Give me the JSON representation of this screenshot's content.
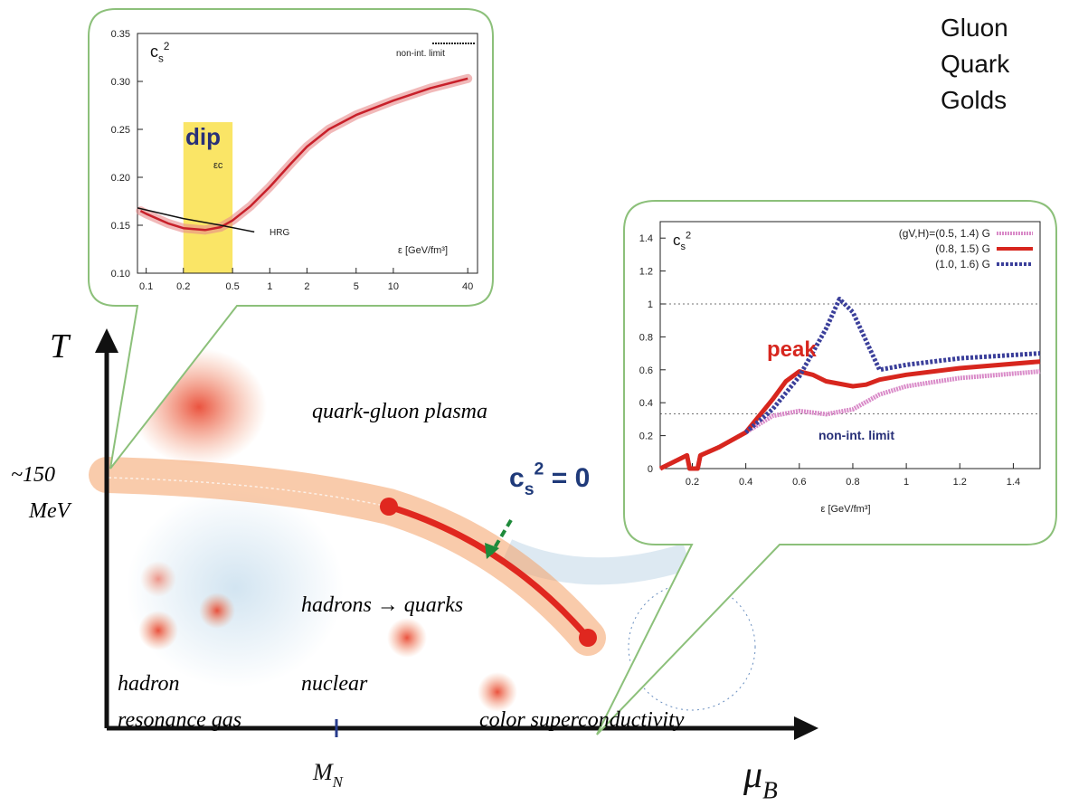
{
  "side_text": [
    "Gluon",
    "Quark",
    "Golds"
  ],
  "phase_diagram": {
    "y_axis_label": "T",
    "x_axis_label": {
      "main": "μ",
      "sub": "B"
    },
    "temperature_mark": [
      "~150",
      "MeV"
    ],
    "density_mark": {
      "main": "M",
      "sub": "N"
    },
    "regions": [
      "quark-gluon plasma",
      "hadrons → quarks",
      "hadron",
      "resonance gas",
      "nuclear",
      "color superconductivity"
    ],
    "critical_label": {
      "main": "c",
      "sub": "s",
      "sup": "2",
      "rest": " = 0"
    }
  },
  "insets": [
    {
      "type": "line",
      "xscale": "log",
      "ylabel": {
        "main": "c",
        "sub": "s",
        "sup": "2"
      },
      "xlabel": "ε [GeV/fm³]",
      "annotations": [
        "dip",
        "εc",
        "HRG"
      ],
      "legend_text": "non-int. limit",
      "highlight": [
        0.2,
        0.5
      ],
      "xlim": [
        0.085,
        48
      ],
      "ylim": [
        0.1,
        0.35
      ],
      "xticks": [
        0.1,
        0.2,
        0.5,
        1,
        2,
        5,
        10,
        40
      ],
      "yticks": [
        {
          "value": 0.1,
          "label": "0.10"
        },
        0.15,
        {
          "value": 0.2,
          "label": "0.20"
        },
        0.25,
        {
          "value": 0.3,
          "label": "0.30"
        },
        0.35
      ],
      "series": [
        {
          "color": "#c8202a",
          "x": [
            0.09,
            0.1,
            0.15,
            0.2,
            0.3,
            0.4,
            0.5,
            0.7,
            1,
            1.5,
            2,
            3,
            5,
            10,
            20,
            40
          ],
          "values": [
            0.165,
            0.162,
            0.152,
            0.147,
            0.145,
            0.148,
            0.155,
            0.17,
            0.19,
            0.215,
            0.232,
            0.25,
            0.265,
            0.28,
            0.293,
            0.303
          ]
        },
        {
          "color": "#111111",
          "x": [
            0.085,
            0.2,
            0.4,
            0.75
          ],
          "values": [
            0.168,
            0.157,
            0.15,
            0.143
          ]
        }
      ]
    },
    {
      "type": "line",
      "xscale": "linear",
      "ylabel": {
        "main": "c",
        "sub": "s",
        "sup": "2"
      },
      "xlabel": "ε [GeV/fm³]",
      "annotations": [
        "peak",
        "non-int. limit"
      ],
      "reference_lines": [
        1,
        0.333
      ],
      "xlim": [
        0.08,
        1.5
      ],
      "ylim": [
        0,
        1.5
      ],
      "xticks": [
        0.2,
        0.4,
        0.6,
        0.8,
        1,
        1.2,
        1.4
      ],
      "yticks": [
        0,
        0.2,
        0.4,
        0.6,
        0.8,
        1,
        1.2,
        1.4
      ],
      "series": [
        {
          "name": "(gV,H)=(0.5, 1.4) G",
          "color": "#d98ac8",
          "dash": "2 1",
          "x": [
            0.08,
            0.18,
            0.19,
            0.22,
            0.23,
            0.3,
            0.4,
            0.5,
            0.6,
            0.7,
            0.8,
            0.9,
            1.0,
            1.2,
            1.5
          ],
          "values": [
            0,
            0.08,
            0,
            0,
            0.08,
            0.13,
            0.22,
            0.32,
            0.35,
            0.33,
            0.36,
            0.45,
            0.5,
            0.55,
            0.59
          ]
        },
        {
          "name": "(0.8, 1.5) G",
          "color": "#d7261e",
          "x": [
            0.08,
            0.18,
            0.19,
            0.22,
            0.23,
            0.3,
            0.4,
            0.5,
            0.55,
            0.6,
            0.65,
            0.7,
            0.8,
            0.85,
            0.9,
            1.0,
            1.2,
            1.5
          ],
          "values": [
            0,
            0.08,
            0,
            0,
            0.08,
            0.13,
            0.22,
            0.42,
            0.53,
            0.59,
            0.57,
            0.53,
            0.5,
            0.51,
            0.54,
            0.57,
            0.61,
            0.65
          ]
        },
        {
          "name": "(1.0, 1.6) G",
          "color": "#3b3f9a",
          "dash": "3 2",
          "x": [
            0.4,
            0.5,
            0.6,
            0.7,
            0.75,
            0.8,
            0.9,
            1.0,
            1.2,
            1.5
          ],
          "values": [
            0.22,
            0.36,
            0.56,
            0.85,
            1.03,
            0.95,
            0.6,
            0.63,
            0.67,
            0.7
          ]
        }
      ]
    }
  ]
}
